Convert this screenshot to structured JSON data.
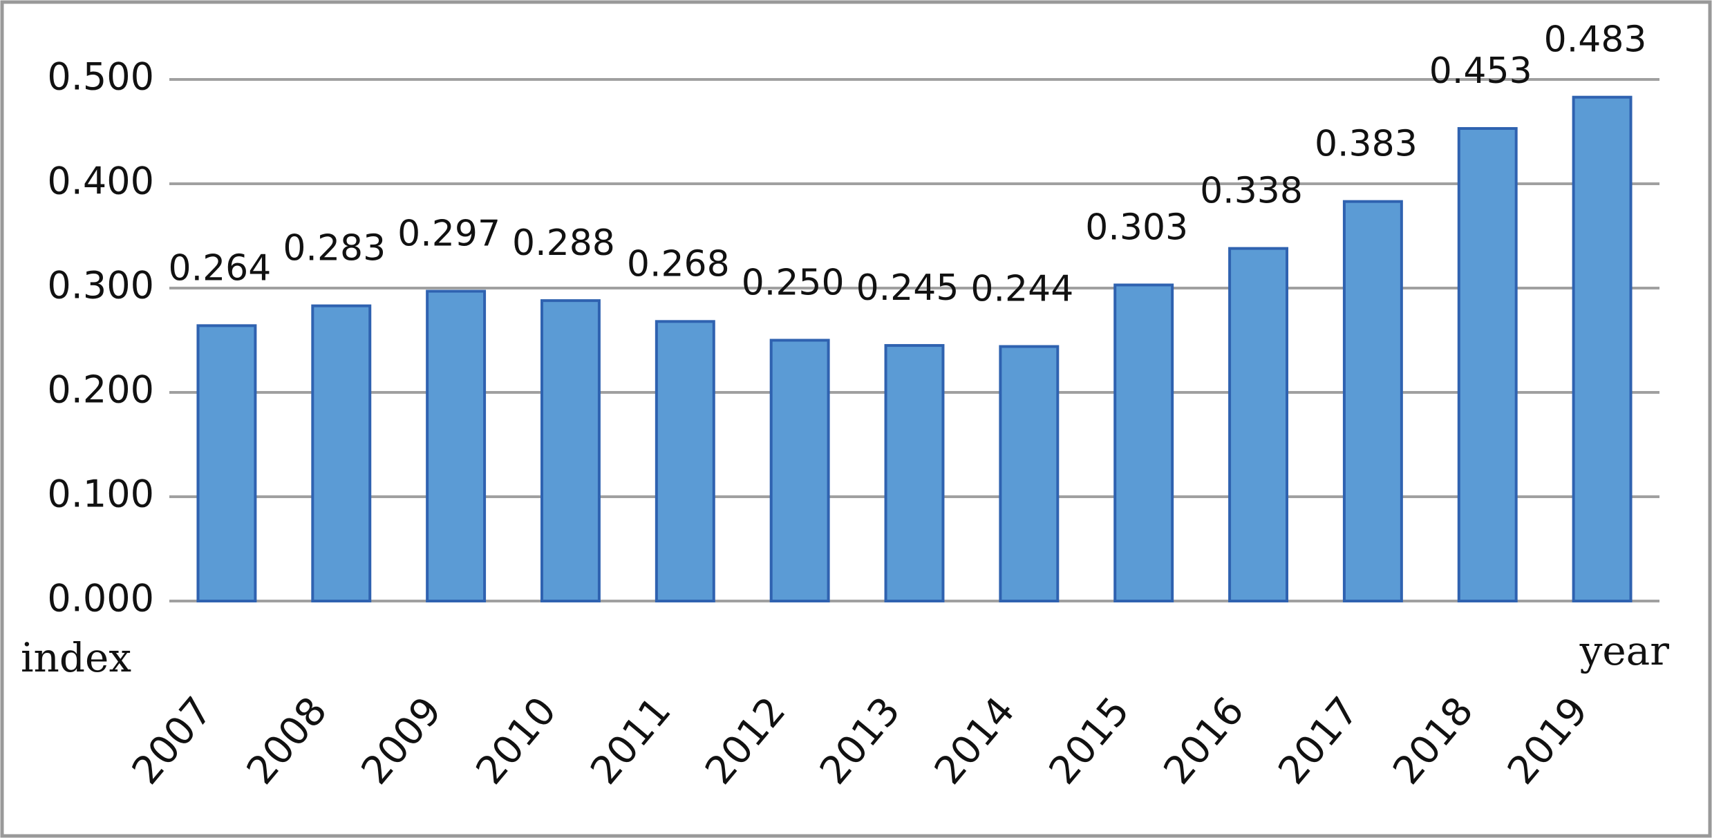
{
  "chart_data": {
    "type": "bar",
    "x_label": "year",
    "y_label": "index",
    "categories": [
      "2007",
      "2008",
      "2009",
      "2010",
      "2011",
      "2012",
      "2013",
      "2014",
      "2015",
      "2016",
      "2017",
      "2018",
      "2019"
    ],
    "values": [
      0.264,
      0.283,
      0.297,
      0.288,
      0.268,
      0.25,
      0.245,
      0.244,
      0.303,
      0.338,
      0.383,
      0.453,
      0.483
    ],
    "value_labels": [
      "0.264",
      "0.283",
      "0.297",
      "0.288",
      "0.268",
      "0.250",
      "0.245",
      "0.244",
      "0.303",
      "0.338",
      "0.383",
      "0.453",
      "0.483"
    ],
    "color": "#5b9bd5",
    "ylim": [
      0,
      0.5
    ],
    "yticks": [
      {
        "value": 0,
        "label": "0.000"
      },
      {
        "value": 0.1,
        "label": "0.100"
      },
      {
        "value": 0.2,
        "label": "0.200"
      },
      {
        "value": 0.3,
        "label": "0.300"
      },
      {
        "value": 0.4,
        "label": "0.400"
      },
      {
        "value": 0.5,
        "label": "0.500"
      }
    ],
    "grid": true
  }
}
